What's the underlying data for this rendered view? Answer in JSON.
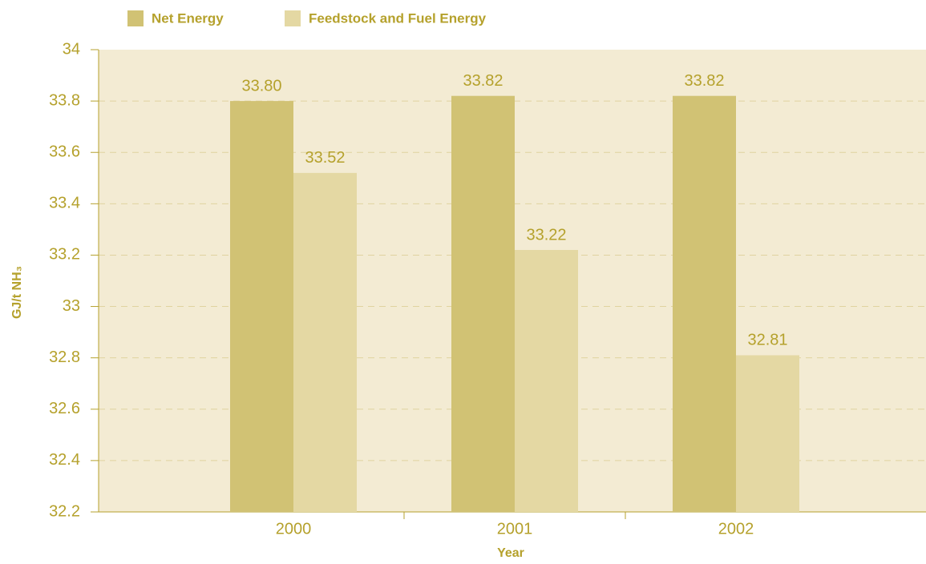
{
  "chart_data": {
    "type": "bar",
    "categories": [
      "2000",
      "2001",
      "2002"
    ],
    "series": [
      {
        "name": "Net Energy",
        "color": "#d1c274",
        "values": [
          33.8,
          33.82,
          33.82
        ],
        "value_labels": [
          "33.80",
          "33.82",
          "33.82"
        ]
      },
      {
        "name": "Feedstock and Fuel Energy",
        "color": "#e4d8a3",
        "values": [
          33.52,
          33.22,
          32.81
        ]
      }
    ],
    "x_label": "Year",
    "y_label": "GJ/t NH₃",
    "ylim": [
      32.2,
      34
    ],
    "yticks": [
      32.2,
      32.4,
      32.6,
      32.8,
      33,
      33.2,
      33.4,
      33.6,
      33.8,
      34
    ],
    "grid": true,
    "legend": "top"
  }
}
